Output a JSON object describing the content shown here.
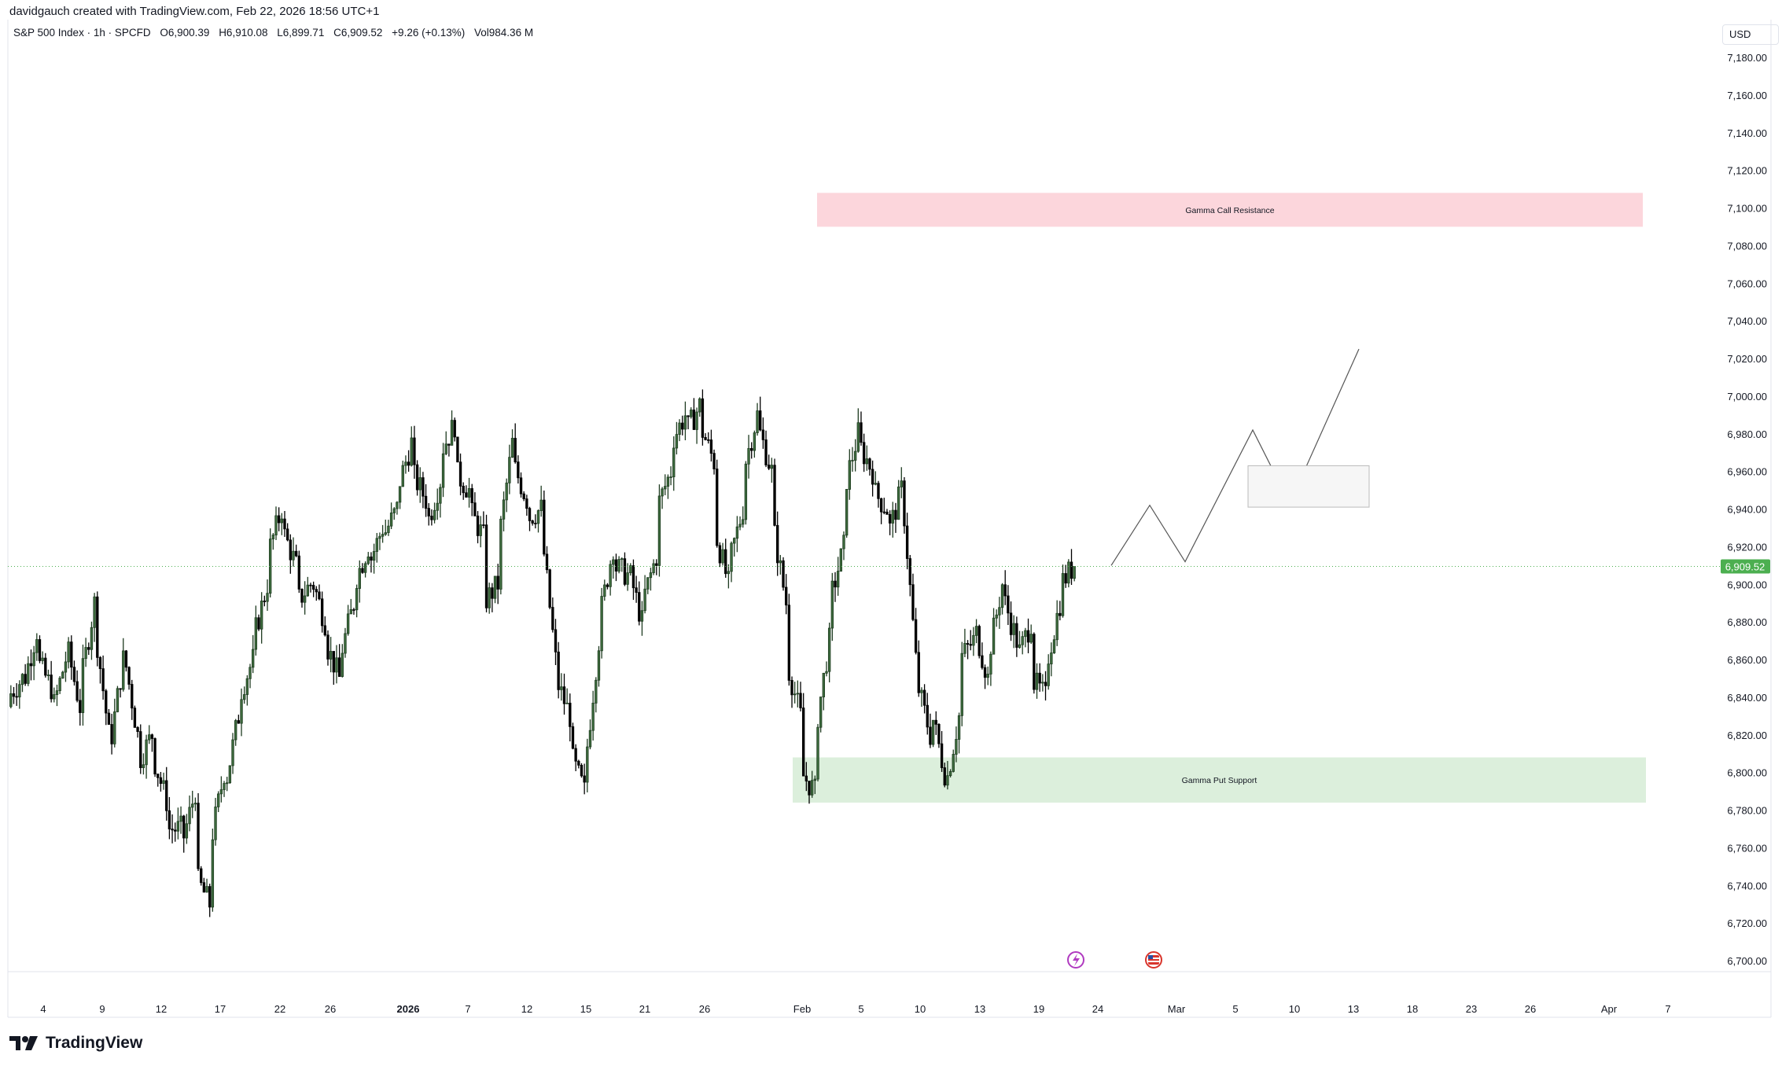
{
  "header": {
    "attribution": "davidgauch created with TradingView.com, Feb 22, 2026 18:56 UTC+1"
  },
  "legend": {
    "symbol": "S&P 500 Index · 1h · SPCFD",
    "open": "O6,900.39",
    "high": "H6,910.08",
    "low": "L6,899.71",
    "close": "C6,909.52",
    "change": "+9.26 (+0.13%)",
    "volume": "Vol984.36 M"
  },
  "currency": "USD",
  "brand": "TradingView",
  "colors": {
    "up": "#1e3b20",
    "down": "#000000",
    "last_price": "#4caf50",
    "resistance_zone": "#fcd6dc",
    "support_zone": "#dcefdc",
    "projection_box": "#f6f6f6"
  },
  "chart_data": {
    "type": "candlestick",
    "interval": "1h",
    "ylim": [
      6700,
      7200
    ],
    "y_ticks": [
      "7,180.00",
      "7,160.00",
      "7,140.00",
      "7,120.00",
      "7,100.00",
      "7,080.00",
      "7,060.00",
      "7,040.00",
      "7,020.00",
      "7,000.00",
      "6,980.00",
      "6,960.00",
      "6,940.00",
      "6,920.00",
      "6,900.00",
      "6,880.00",
      "6,860.00",
      "6,840.00",
      "6,820.00",
      "6,800.00",
      "6,780.00",
      "6,760.00",
      "6,740.00",
      "6,720.00",
      "6,700.00"
    ],
    "x_ticks": [
      {
        "label": "4",
        "bold": false
      },
      {
        "label": "9",
        "bold": false
      },
      {
        "label": "12",
        "bold": false
      },
      {
        "label": "17",
        "bold": false
      },
      {
        "label": "22",
        "bold": false
      },
      {
        "label": "26",
        "bold": false
      },
      {
        "label": "2026",
        "bold": true
      },
      {
        "label": "7",
        "bold": false
      },
      {
        "label": "12",
        "bold": false
      },
      {
        "label": "15",
        "bold": false
      },
      {
        "label": "21",
        "bold": false
      },
      {
        "label": "26",
        "bold": false
      },
      {
        "label": "Feb",
        "bold": false
      },
      {
        "label": "5",
        "bold": false
      },
      {
        "label": "10",
        "bold": false
      },
      {
        "label": "13",
        "bold": false
      },
      {
        "label": "19",
        "bold": false
      },
      {
        "label": "24",
        "bold": false
      },
      {
        "label": "Mar",
        "bold": false
      },
      {
        "label": "5",
        "bold": false
      },
      {
        "label": "10",
        "bold": false
      },
      {
        "label": "13",
        "bold": false
      },
      {
        "label": "18",
        "bold": false
      },
      {
        "label": "23",
        "bold": false
      },
      {
        "label": "26",
        "bold": false
      },
      {
        "label": "Apr",
        "bold": false
      },
      {
        "label": "7",
        "bold": false
      }
    ],
    "last_price": 6909.52,
    "last_price_label": "6,909.52",
    "price_path": [
      [
        6835,
        6840
      ],
      [
        6850,
        6845
      ],
      [
        6875,
        6860
      ],
      [
        6845,
        6830
      ],
      [
        6860,
        6870
      ],
      [
        6835,
        6845
      ],
      [
        6890,
        6880
      ],
      [
        6820,
        6810
      ],
      [
        6860,
        6865
      ],
      [
        6820,
        6805
      ],
      [
        6820,
        6810
      ],
      [
        6785,
        6770
      ],
      [
        6770,
        6760
      ],
      [
        6790,
        6745
      ],
      [
        6730,
        6760
      ],
      [
        6800,
        6790
      ],
      [
        6830,
        6840
      ],
      [
        6860,
        6870
      ],
      [
        6900,
        6915
      ],
      [
        6940,
        6930
      ],
      [
        6910,
        6890
      ],
      [
        6900,
        6905
      ],
      [
        6880,
        6870
      ],
      [
        6850,
        6860
      ],
      [
        6890,
        6900
      ],
      [
        6920,
        6910
      ],
      [
        6930,
        6925
      ],
      [
        6940,
        6950
      ],
      [
        6975,
        6960
      ],
      [
        6945,
        6930
      ],
      [
        6955,
        6970
      ],
      [
        6985,
        6960
      ],
      [
        6950,
        6940
      ],
      [
        6925,
        6890
      ],
      [
        6900,
        6920
      ],
      [
        6975,
        6965
      ],
      [
        6945,
        6935
      ],
      [
        6940,
        6930
      ],
      [
        6860,
        6850
      ],
      [
        6830,
        6810
      ],
      [
        6790,
        6800
      ],
      [
        6870,
        6880
      ],
      [
        6920,
        6910
      ],
      [
        6905,
        6910
      ],
      [
        6880,
        6890
      ],
      [
        6915,
        6940
      ],
      [
        6960,
        6975
      ],
      [
        6990,
        6980
      ],
      [
        6995,
        6985
      ],
      [
        6965,
        6930
      ],
      [
        6900,
        6910
      ],
      [
        6940,
        6960
      ],
      [
        6990,
        6985
      ],
      [
        6960,
        6935
      ],
      [
        6890,
        6860
      ],
      [
        6830,
        6800
      ],
      [
        6790,
        6820
      ],
      [
        6870,
        6890
      ],
      [
        6920,
        6950
      ],
      [
        6980,
        6975
      ],
      [
        6960,
        6950
      ],
      [
        6940,
        6925
      ],
      [
        6950,
        6955
      ],
      [
        6860,
        6850
      ],
      [
        6820,
        6835
      ],
      [
        6800,
        6790
      ],
      [
        6830,
        6860
      ],
      [
        6870,
        6880
      ],
      [
        6850,
        6860
      ],
      [
        6900,
        6895
      ],
      [
        6870,
        6860
      ],
      [
        6880,
        6850
      ],
      [
        6840,
        6855
      ],
      [
        6890,
        6900
      ],
      [
        6910,
        6909.52
      ]
    ],
    "series": [
      {
        "name": "Gamma Call Resistance",
        "type": "zone",
        "y_range": [
          7090,
          7108
        ]
      },
      {
        "name": "Gamma Put Support",
        "type": "zone",
        "y_range": [
          6784,
          6808
        ]
      }
    ],
    "projection_path": [
      [
        0,
        6910
      ],
      [
        1,
        6942
      ],
      [
        2,
        6912
      ],
      [
        3,
        6982
      ],
      [
        4,
        6943
      ],
      [
        5,
        7025
      ]
    ],
    "projection_box_range": [
      6941,
      6963
    ]
  }
}
